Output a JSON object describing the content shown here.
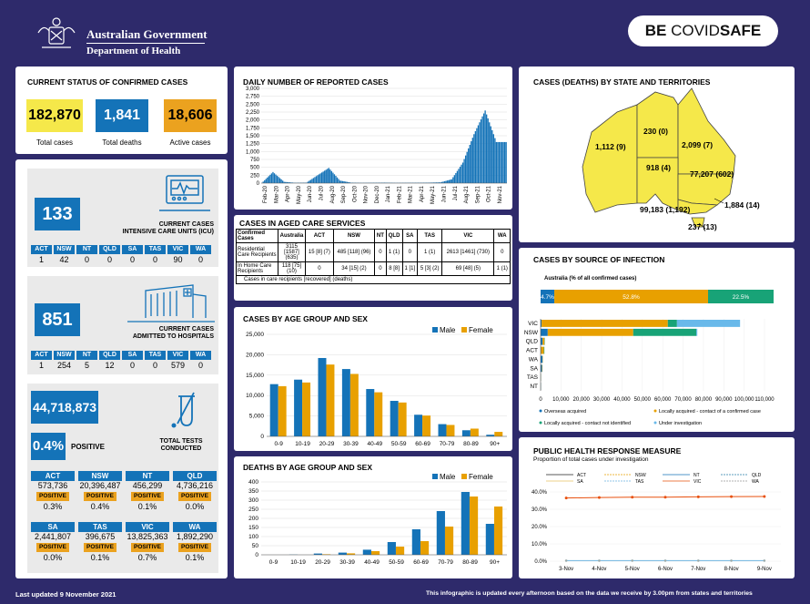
{
  "header": {
    "gov_line1": "Australian Government",
    "gov_line2": "Department of Health",
    "covidsafe_be": "BE ",
    "covidsafe_covid": "COVID",
    "covidsafe_safe": "SAFE"
  },
  "current_status": {
    "title": "CURRENT STATUS OF CONFIRMED CASES",
    "total_cases": "182,870",
    "total_cases_label": "Total cases",
    "total_deaths": "1,841",
    "total_deaths_label": "Total deaths",
    "active_cases": "18,606",
    "active_cases_label": "Active cases",
    "colors": {
      "yellow": "#f5e84a",
      "blue": "#1473b8",
      "orange": "#eba21f"
    }
  },
  "icu": {
    "value": "133",
    "label_line1": "CURRENT CASES",
    "label_line2": "INTENSIVE CARE UNITS (ICU)",
    "states": [
      "ACT",
      "NSW",
      "NT",
      "QLD",
      "SA",
      "TAS",
      "VIC",
      "WA"
    ],
    "values": [
      "1",
      "42",
      "0",
      "0",
      "0",
      "0",
      "90",
      "0"
    ]
  },
  "hospital": {
    "value": "851",
    "label_line1": "CURRENT CASES",
    "label_line2": "ADMITTED TO HOSPITALS",
    "states": [
      "ACT",
      "NSW",
      "NT",
      "QLD",
      "SA",
      "TAS",
      "VIC",
      "WA"
    ],
    "values": [
      "1",
      "254",
      "5",
      "12",
      "0",
      "0",
      "579",
      "0"
    ]
  },
  "tests": {
    "total": "44,718,873",
    "positive_pct": "0.4%",
    "positive_label": "POSITIVE",
    "label_line1": "TOTAL TESTS",
    "label_line2": "CONDUCTED",
    "positive_tag": "POSITIVE",
    "states": [
      {
        "state": "ACT",
        "tests": "573,736",
        "pct": "0.3%"
      },
      {
        "state": "NSW",
        "tests": "20,396,487",
        "pct": "0.4%"
      },
      {
        "state": "NT",
        "tests": "456,299",
        "pct": "0.1%"
      },
      {
        "state": "QLD",
        "tests": "4,736,216",
        "pct": "0.0%"
      },
      {
        "state": "SA",
        "tests": "2,441,807",
        "pct": "0.0%"
      },
      {
        "state": "TAS",
        "tests": "396,675",
        "pct": "0.1%"
      },
      {
        "state": "VIC",
        "tests": "13,825,363",
        "pct": "0.7%"
      },
      {
        "state": "WA",
        "tests": "1,892,290",
        "pct": "0.1%"
      }
    ]
  },
  "aged_care": {
    "title": "CASES IN AGED CARE SERVICES",
    "headers": [
      "Confirmed Cases",
      "Australia",
      "ACT",
      "NSW",
      "NT",
      "QLD",
      "SA",
      "TAS",
      "VIC",
      "WA"
    ],
    "rows": [
      {
        "label": "Residential Care Recipients",
        "values": [
          "3115 [1587] (635)",
          "15 [8] (7)",
          "485 [118] (96)",
          "0",
          "1 (1)",
          "0",
          "1 (1)",
          "2613 [1461] (730)",
          "0"
        ]
      },
      {
        "label": "In Home Care Recipients",
        "values": [
          "118 [75] (10)",
          "0",
          "34 [15] (2)",
          "0",
          "8 [8]",
          "1 [1]",
          "5 [3] (2)",
          "69 [48] (5)",
          "1 (1)"
        ]
      }
    ],
    "note": "Cases in care recipients [recovered] (deaths)"
  },
  "state_map": {
    "title": "CASES (DEATHS) BY STATE AND TERRITORIES",
    "labels": {
      "WA": "1,112 (9)",
      "NT": "230 (0)",
      "QLD": "2,099 (7)",
      "SA": "918 (4)",
      "NSW": "77,207 (602)",
      "ACT": "1,884 (14)",
      "VIC": "99,183 (1,192)",
      "TAS": "237 (13)"
    }
  },
  "source_of_infection": {
    "title": "CASES BY SOURCE OF INFECTION",
    "australia_label": "Australia (% of all confirmed cases)",
    "australia_segments": [
      {
        "name": "Overseas acquired",
        "pct": 4.7,
        "label": "4.7%"
      },
      {
        "name": "Locally acquired - contact of a confirmed case",
        "pct": 52.8,
        "label": "52.8%"
      },
      {
        "name": "Locally acquired - contact not identified",
        "pct": 22.5,
        "label": "22.5%"
      },
      {
        "name": "Under investigation",
        "pct": 0,
        "label": ""
      }
    ],
    "states": [
      "VIC",
      "NSW",
      "QLD",
      "ACT",
      "WA",
      "SA",
      "TAS",
      "NT"
    ],
    "state_values": {
      "VIC": [
        500,
        62000,
        4500,
        31000
      ],
      "NSW": [
        3500,
        42000,
        31000,
        500
      ],
      "QLD": [
        1000,
        900,
        150,
        50
      ],
      "ACT": [
        200,
        1400,
        250,
        30
      ],
      "WA": [
        950,
        150,
        20,
        0
      ],
      "SA": [
        700,
        200,
        20,
        0
      ],
      "TAS": [
        150,
        80,
        10,
        0
      ],
      "NT": [
        180,
        50,
        5,
        0
      ]
    },
    "x_ticks": [
      "0",
      "10,000",
      "20,000",
      "30,000",
      "40,000",
      "50,000",
      "60,000",
      "70,000",
      "80,000",
      "90,000",
      "100,000",
      "110,000"
    ],
    "x_max": 110000,
    "legend": [
      "Overseas acquired",
      "Locally acquired - contact of a confirmed case",
      "Locally acquired - contact not identified",
      "Under investigation"
    ],
    "colors": [
      "#1473b8",
      "#e8a000",
      "#18a377",
      "#69b9ea"
    ]
  },
  "response": {
    "title": "PUBLIC HEALTH RESPONSE MEASURE",
    "subtitle": "Proportion of total cases under investigation",
    "legend": [
      "ACT",
      "NSW",
      "NT",
      "QLD",
      "SA",
      "TAS",
      "VIC",
      "WA"
    ],
    "x": [
      "3-Nov",
      "4-Nov",
      "5-Nov",
      "6-Nov",
      "7-Nov",
      "8-Nov",
      "9-Nov"
    ],
    "y_ticks": [
      "0.0%",
      "10.0%",
      "20.0%",
      "30.0%",
      "40.0%"
    ],
    "vic": [
      36.5,
      36.8,
      37.0,
      37.0,
      37.2,
      37.3,
      37.4
    ],
    "others": [
      0.3,
      0.3,
      0.3,
      0.3,
      0.3,
      0.3,
      0.3
    ]
  },
  "chart_data": [
    {
      "type": "bar",
      "title": "DAILY NUMBER OF REPORTED CASES",
      "ylim": [
        0,
        3000
      ],
      "y_ticks": [
        "0",
        "250",
        "500",
        "750",
        "1,000",
        "1,250",
        "1,500",
        "1,750",
        "2,000",
        "2,250",
        "2,500",
        "2,750",
        "3,000"
      ],
      "categories": [
        "Feb-20",
        "Mar-20",
        "Apr-20",
        "May-20",
        "Jun-20",
        "Jul-20",
        "Aug-20",
        "Sep-20",
        "Oct-20",
        "Nov-20",
        "Dec-20",
        "Jan-21",
        "Feb-21",
        "Mar-21",
        "Apr-21",
        "May-21",
        "Jun-21",
        "Jul-21",
        "Aug-21",
        "Sep-21",
        "Oct-21",
        "Nov-21"
      ],
      "values": [
        5,
        350,
        40,
        10,
        15,
        250,
        480,
        80,
        15,
        8,
        12,
        15,
        8,
        10,
        12,
        15,
        25,
        120,
        650,
        1550,
        2300,
        1300
      ]
    },
    {
      "type": "bar",
      "title": "CASES BY AGE GROUP AND SEX",
      "categories": [
        "0-9",
        "10-19",
        "20-29",
        "30-39",
        "40-49",
        "50-59",
        "60-69",
        "70-79",
        "80-89",
        "90+"
      ],
      "ylim": [
        0,
        25000
      ],
      "y_ticks": [
        "0",
        "5,000",
        "10,000",
        "15,000",
        "20,000",
        "25,000"
      ],
      "series": [
        {
          "name": "Male",
          "values": [
            12800,
            13900,
            19200,
            16500,
            11600,
            8700,
            5300,
            3000,
            1500,
            400
          ]
        },
        {
          "name": "Female",
          "values": [
            12300,
            13200,
            17600,
            15300,
            10800,
            8300,
            5100,
            2800,
            1900,
            1100
          ]
        }
      ]
    },
    {
      "type": "bar",
      "title": "DEATHS BY AGE GROUP AND SEX",
      "categories": [
        "0-9",
        "10-19",
        "20-29",
        "30-39",
        "40-49",
        "50-59",
        "60-69",
        "70-79",
        "80-89",
        "90+"
      ],
      "ylim": [
        0,
        400
      ],
      "y_ticks": [
        "0",
        "50",
        "100",
        "150",
        "200",
        "250",
        "300",
        "350",
        "400"
      ],
      "series": [
        {
          "name": "Male",
          "values": [
            0,
            1,
            7,
            12,
            28,
            70,
            140,
            240,
            345,
            170
          ]
        },
        {
          "name": "Female",
          "values": [
            0,
            0,
            3,
            8,
            20,
            45,
            75,
            155,
            320,
            265
          ]
        }
      ]
    }
  ],
  "footer": {
    "updated": "Last updated 9 November 2021",
    "note": "This infographic is updated every afternoon based on the data we receive by 3.00pm from states and territories"
  }
}
